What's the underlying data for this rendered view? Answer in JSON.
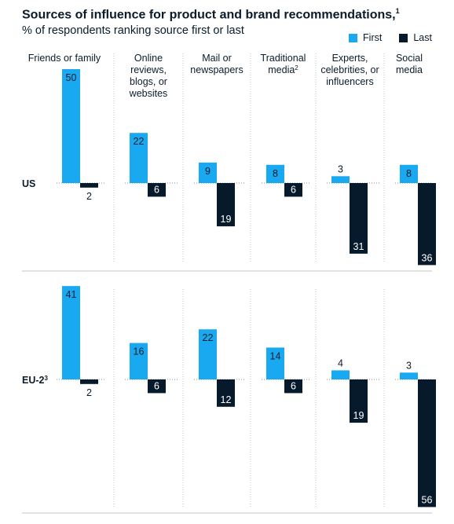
{
  "title": "Sources of influence for product and brand recommendations,",
  "title_note": "1",
  "subtitle": "% of respondents ranking source first or last",
  "colors": {
    "first": "#19a9f0",
    "last": "#071a2c",
    "grid": "#bfc4c9",
    "text": "#0b1b2b"
  },
  "chart_data": {
    "type": "bar",
    "orientation": "vertical-diverging",
    "legend": {
      "position": "top-right",
      "entries": [
        "First",
        "Last"
      ]
    },
    "categories": [
      {
        "lines": [
          "Friends or family"
        ]
      },
      {
        "lines": [
          "Online",
          "reviews,",
          "blogs, or",
          "websites"
        ]
      },
      {
        "lines": [
          "Mail or",
          "newspapers"
        ]
      },
      {
        "lines": [
          "Traditional",
          "media"
        ],
        "note": "2"
      },
      {
        "lines": [
          "Experts,",
          "celebrities, or",
          "influencers"
        ]
      },
      {
        "lines": [
          "Social",
          "media"
        ]
      }
    ],
    "rows": [
      {
        "label": "US",
        "note": "",
        "series": [
          {
            "name": "First",
            "values": [
              50,
              22,
              9,
              8,
              3,
              8
            ]
          },
          {
            "name": "Last",
            "values": [
              2,
              6,
              19,
              6,
              31,
              36
            ]
          }
        ]
      },
      {
        "label": "EU-2",
        "note": "3",
        "series": [
          {
            "name": "First",
            "values": [
              41,
              16,
              22,
              14,
              4,
              3
            ]
          },
          {
            "name": "Last",
            "values": [
              2,
              6,
              12,
              6,
              19,
              56
            ]
          }
        ]
      }
    ],
    "grid": true
  }
}
